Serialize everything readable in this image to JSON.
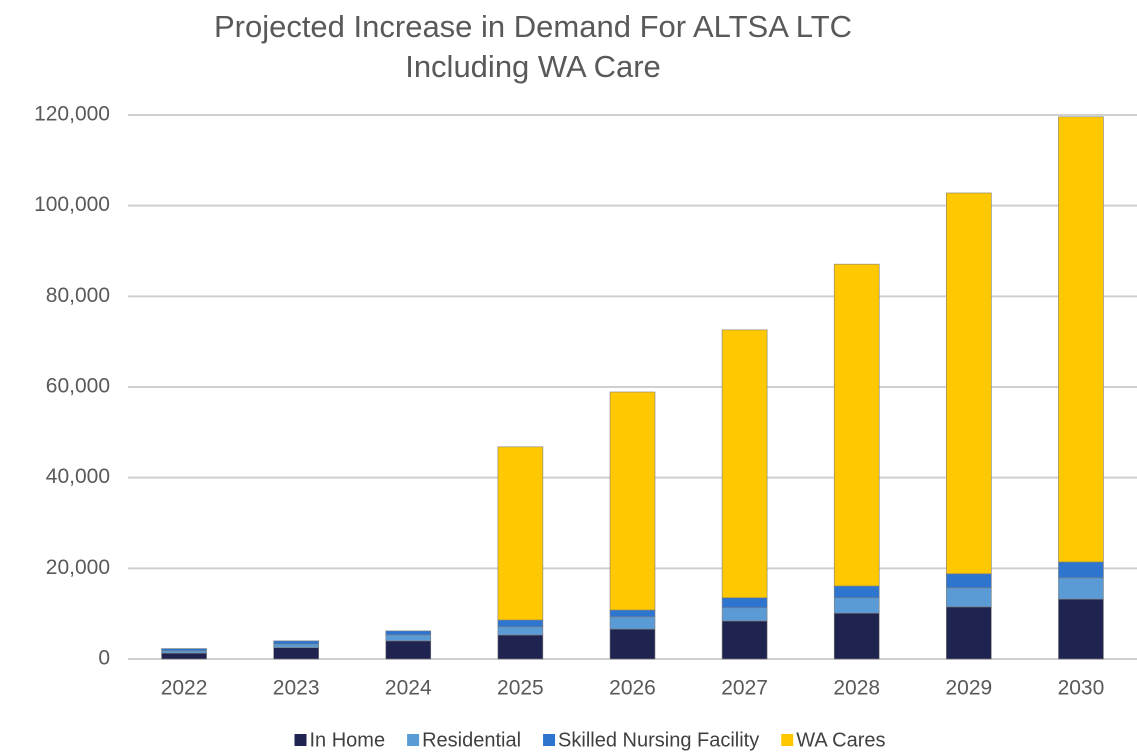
{
  "chart_data": {
    "type": "stacked_bar",
    "title": [
      "Projected Increase in Demand For ALTSA LTC",
      "Including WA Care"
    ],
    "categories": [
      "2022",
      "2023",
      "2024",
      "2025",
      "2026",
      "2027",
      "2028",
      "2029",
      "2030"
    ],
    "series": [
      {
        "name": "In Home",
        "color": "#1f2350",
        "values": [
          1300,
          2500,
          4000,
          5300,
          6600,
          8400,
          10100,
          11500,
          13200
        ]
      },
      {
        "name": "Residential",
        "color": "#5b9bd5",
        "values": [
          500,
          800,
          1300,
          1800,
          2700,
          2900,
          3400,
          4200,
          4700
        ]
      },
      {
        "name": "Skilled Nursing Facility",
        "color": "#2e75d0",
        "values": [
          500,
          700,
          900,
          1500,
          1500,
          2200,
          2600,
          3100,
          3500
        ]
      },
      {
        "name": "WA Cares",
        "color": "#ffc800",
        "values": [
          0,
          0,
          0,
          38200,
          48100,
          59100,
          71000,
          84000,
          98200
        ]
      }
    ],
    "ylim": [
      0,
      120000
    ],
    "yticks": [
      0,
      {
        "value": 20000,
        "label": "20,000"
      },
      {
        "value": 40000,
        "label": "40,000"
      },
      {
        "value": 60000,
        "label": "60,000"
      },
      {
        "value": 80000,
        "label": "80,000"
      },
      {
        "value": 100000,
        "label": "100,000"
      },
      {
        "value": 120000,
        "label": "120,000"
      }
    ],
    "grid": true,
    "legend": "bottom"
  }
}
